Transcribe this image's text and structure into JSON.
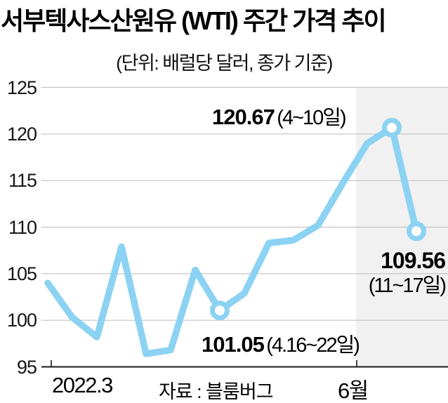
{
  "header": {
    "title": "서부텍사스산원유 (WTI) 주간 가격 추이",
    "subtitle": "(단위: 배럴당 달러, 종가 기준)"
  },
  "footer": {
    "source": "자료 : 블룸버그"
  },
  "chart_data": {
    "type": "line",
    "title": "서부텍사스산원유 (WTI) 주간 가격 추이",
    "subtitle": "(단위: 배럴당 달러, 종가 기준)",
    "unit": "배럴당 달러, 종가 기준",
    "x_tick_labels": [
      "2022.3",
      "6월"
    ],
    "values": [
      104.0,
      100.3,
      98.2,
      107.9,
      96.4,
      96.8,
      105.4,
      101.05,
      102.9,
      108.3,
      108.6,
      110.2,
      114.7,
      119.0,
      120.67,
      109.56
    ],
    "ylim": [
      95,
      125
    ],
    "yticks": [
      95,
      100,
      105,
      110,
      115,
      120,
      125
    ],
    "grid": true,
    "legend": false,
    "line_color": "#8CD2F2",
    "highlight_color": "#f1f1f1",
    "axis_color": "#1a1a1a",
    "grid_color": "#c4c4c4",
    "marker_points": [
      {
        "index": 7,
        "value": 101.05,
        "label_value": "101.05",
        "label_period": "(4.16~22일)"
      },
      {
        "index": 14,
        "value": 120.67,
        "label_value": "120.67",
        "label_period": "(4~10일)"
      },
      {
        "index": 15,
        "value": 109.56,
        "label_value": "109.56",
        "label_period": "(11~17일)"
      }
    ],
    "source": "자료 : 블룸버그"
  }
}
